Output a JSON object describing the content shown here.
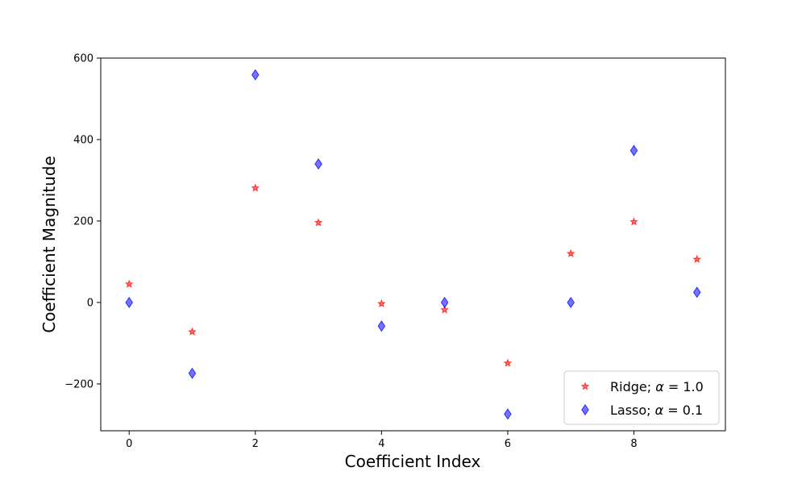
{
  "chart_data": {
    "type": "scatter",
    "title": "",
    "xlabel": "Coefficient Index",
    "ylabel": "Coefficient Magnitude",
    "xlim": [
      -0.45,
      9.45
    ],
    "ylim": [
      -315,
      600
    ],
    "xticks": [
      0,
      2,
      4,
      6,
      8
    ],
    "yticks": [
      -200,
      0,
      200,
      400,
      600
    ],
    "xtick_labels": [
      "0",
      "2",
      "4",
      "6",
      "8"
    ],
    "ytick_labels": [
      "−200",
      "0",
      "200",
      "400",
      "600"
    ],
    "grid": false,
    "legend_position": "lower-right",
    "series": [
      {
        "name": "Ridge; α = 1.0",
        "legend_prefix": "Ridge; ",
        "legend_symbol": "α",
        "legend_suffix": " = 1.0",
        "marker": "star",
        "color": "#ff0000",
        "x": [
          0,
          1,
          2,
          3,
          4,
          5,
          6,
          7,
          8,
          9
        ],
        "y": [
          45,
          -72,
          281,
          196,
          -3,
          -18,
          -149,
          120,
          198,
          106
        ]
      },
      {
        "name": "Lasso; α = 0.1",
        "legend_prefix": "Lasso; ",
        "legend_symbol": "α",
        "legend_suffix": " = 0.1",
        "marker": "thin-diamond",
        "color": "#0000ff",
        "x": [
          0,
          1,
          2,
          3,
          4,
          5,
          6,
          7,
          8,
          9
        ],
        "y": [
          0,
          -174,
          559,
          340,
          -58,
          0,
          -274,
          0,
          373,
          25
        ]
      }
    ]
  }
}
